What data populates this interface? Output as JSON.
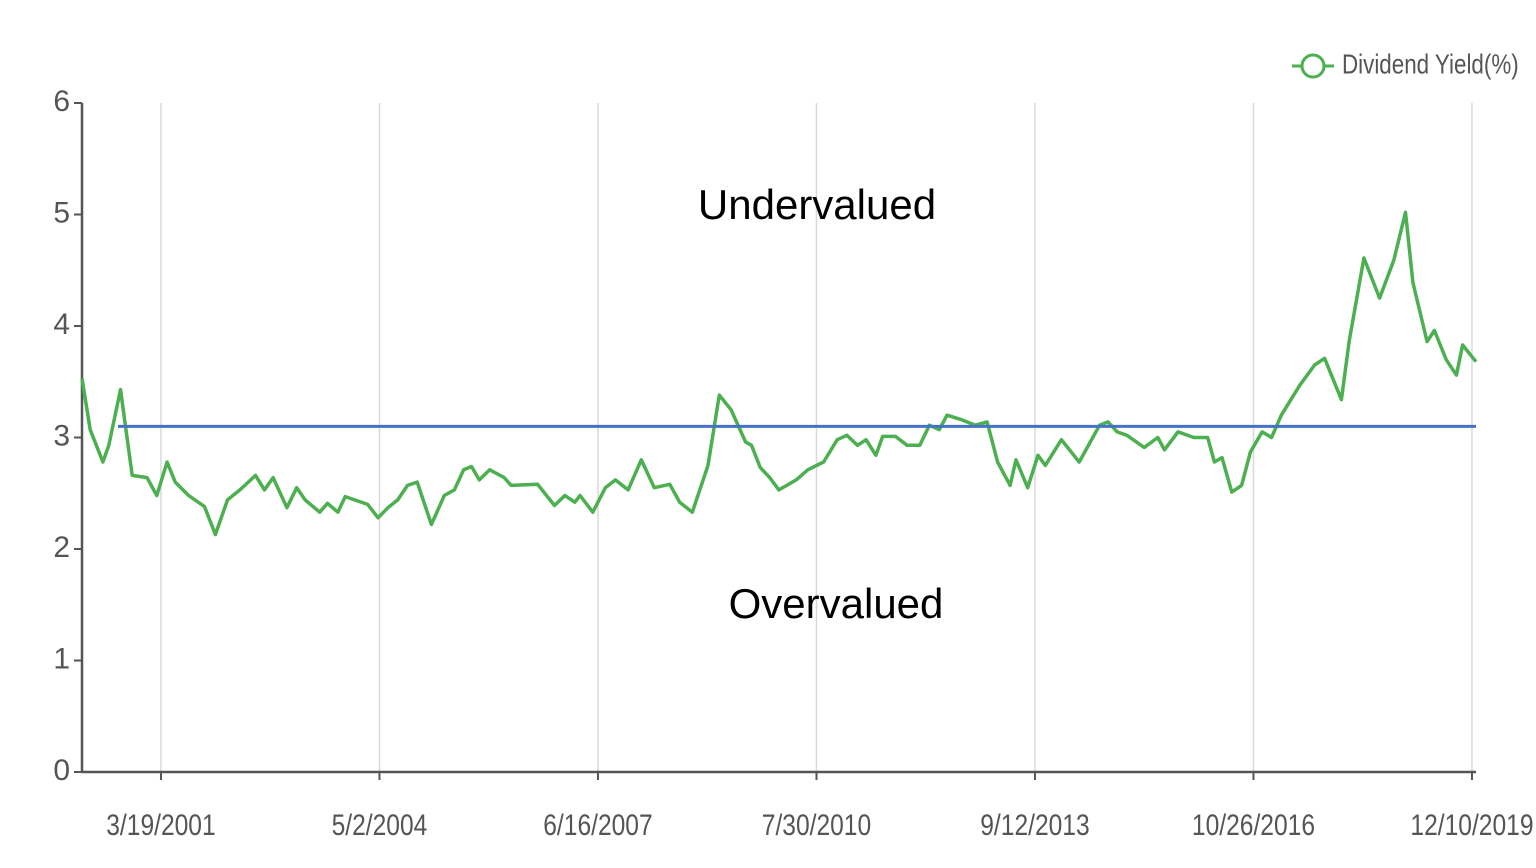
{
  "chart_data": {
    "type": "line",
    "annotations": [
      "Undervalued",
      "Overvalued"
    ],
    "reference_line": 3.1,
    "reference_color": "#4472c4",
    "xlim": [
      "2/1/2000",
      "12/31/2019"
    ],
    "xticks": [
      "3/19/2001",
      "5/2/2004",
      "6/16/2007",
      "7/30/2010",
      "9/12/2013",
      "10/26/2016",
      "12/10/2019"
    ],
    "ylim": [
      0,
      6
    ],
    "yticks": [
      0,
      1,
      2,
      3,
      4,
      5,
      6
    ],
    "grid": true,
    "legend": "top-right",
    "x": [
      "2/1/2000",
      "3/15/2000",
      "5/20/2000",
      "6/20/2000",
      "8/20/2000",
      "10/20/2000",
      "1/5/2001",
      "2/25/2001",
      "4/20/2001",
      "6/1/2001",
      "8/10/2001",
      "11/1/2001",
      "12/28/2001",
      "3/1/2002",
      "5/5/2002",
      "7/25/2002",
      "9/10/2002",
      "10/25/2002",
      "1/5/2003",
      "2/25/2003",
      "4/10/2003",
      "6/25/2003",
      "8/5/2003",
      "9/28/2003",
      "11/5/2003",
      "3/1/2004",
      "4/25/2004",
      "6/15/2004",
      "8/5/2004",
      "9/25/2004",
      "11/15/2004",
      "1/28/2005",
      "4/5/2005",
      "5/28/2005",
      "7/15/2005",
      "8/25/2005",
      "10/5/2005",
      "11/28/2005",
      "2/12/2006",
      "3/20/2006",
      "8/5/2006",
      "11/1/2006",
      "12/25/2006",
      "2/15/2007",
      "3/15/2007",
      "5/20/2007",
      "7/25/2007",
      "9/15/2007",
      "11/20/2007",
      "1/28/2008",
      "4/5/2008",
      "6/25/2008",
      "8/15/2008",
      "10/20/2008",
      "1/10/2009",
      "3/10/2009",
      "5/10/2009",
      "7/25/2009",
      "8/25/2009",
      "10/10/2009",
      "11/28/2009",
      "1/15/2010",
      "4/15/2010",
      "6/15/2010",
      "9/5/2010",
      "11/15/2010",
      "1/5/2011",
      "3/1/2011",
      "4/15/2011",
      "6/5/2011",
      "7/10/2011",
      "9/15/2011",
      "11/15/2011",
      "1/20/2012",
      "3/10/2012",
      "5/1/2012",
      "6/10/2012",
      "8/25/2012",
      "11/5/2012",
      "1/5/2013",
      "3/1/2013",
      "5/5/2013",
      "6/5/2013",
      "8/5/2013",
      "9/28/2013",
      "11/5/2013",
      "1/28/2014",
      "5/1/2014",
      "8/15/2014",
      "9/28/2014",
      "11/15/2014",
      "1/5/2015",
      "4/5/2015",
      "6/15/2015",
      "7/20/2015",
      "9/28/2015",
      "12/20/2015",
      "3/1/2016",
      "4/5/2016",
      "5/15/2016",
      "7/5/2016",
      "8/25/2016",
      "10/10/2016",
      "12/10/2016",
      "1/28/2017",
      "3/20/2017",
      "6/25/2017",
      "9/10/2017",
      "11/1/2017",
      "1/28/2018",
      "3/10/2018",
      "5/25/2018",
      "8/15/2018",
      "10/28/2018",
      "12/28/2018",
      "2/5/2019",
      "4/20/2019",
      "5/28/2019",
      "7/28/2019",
      "9/20/2019",
      "10/22/2019",
      "12/31/2019"
    ],
    "series": [
      {
        "name": "Dividend Yield(%)",
        "color": "#4caf50",
        "values": [
          3.53,
          3.07,
          2.78,
          2.93,
          3.43,
          2.66,
          2.64,
          2.48,
          2.78,
          2.6,
          2.48,
          2.38,
          2.13,
          2.44,
          2.53,
          2.66,
          2.53,
          2.64,
          2.37,
          2.55,
          2.44,
          2.33,
          2.41,
          2.33,
          2.47,
          2.4,
          2.28,
          2.37,
          2.44,
          2.57,
          2.6,
          2.22,
          2.48,
          2.53,
          2.71,
          2.74,
          2.62,
          2.71,
          2.64,
          2.57,
          2.58,
          2.39,
          2.48,
          2.42,
          2.48,
          2.33,
          2.55,
          2.62,
          2.53,
          2.8,
          2.55,
          2.58,
          2.42,
          2.33,
          2.75,
          3.38,
          3.25,
          2.96,
          2.93,
          2.73,
          2.64,
          2.53,
          2.62,
          2.71,
          2.78,
          2.98,
          3.02,
          2.93,
          2.98,
          2.84,
          3.01,
          3.01,
          2.93,
          2.93,
          3.11,
          3.07,
          3.2,
          3.16,
          3.11,
          3.14,
          2.78,
          2.57,
          2.8,
          2.55,
          2.84,
          2.75,
          2.98,
          2.78,
          3.11,
          3.14,
          3.05,
          3.02,
          2.91,
          3.0,
          2.89,
          3.05,
          3.0,
          3.0,
          2.78,
          2.82,
          2.51,
          2.57,
          2.87,
          3.05,
          3.0,
          3.2,
          3.47,
          3.65,
          3.71,
          3.34,
          3.87,
          4.61,
          4.25,
          4.59,
          5.02,
          4.39,
          3.86,
          3.96,
          3.7,
          3.56,
          3.83,
          3.68
        ]
      }
    ]
  }
}
